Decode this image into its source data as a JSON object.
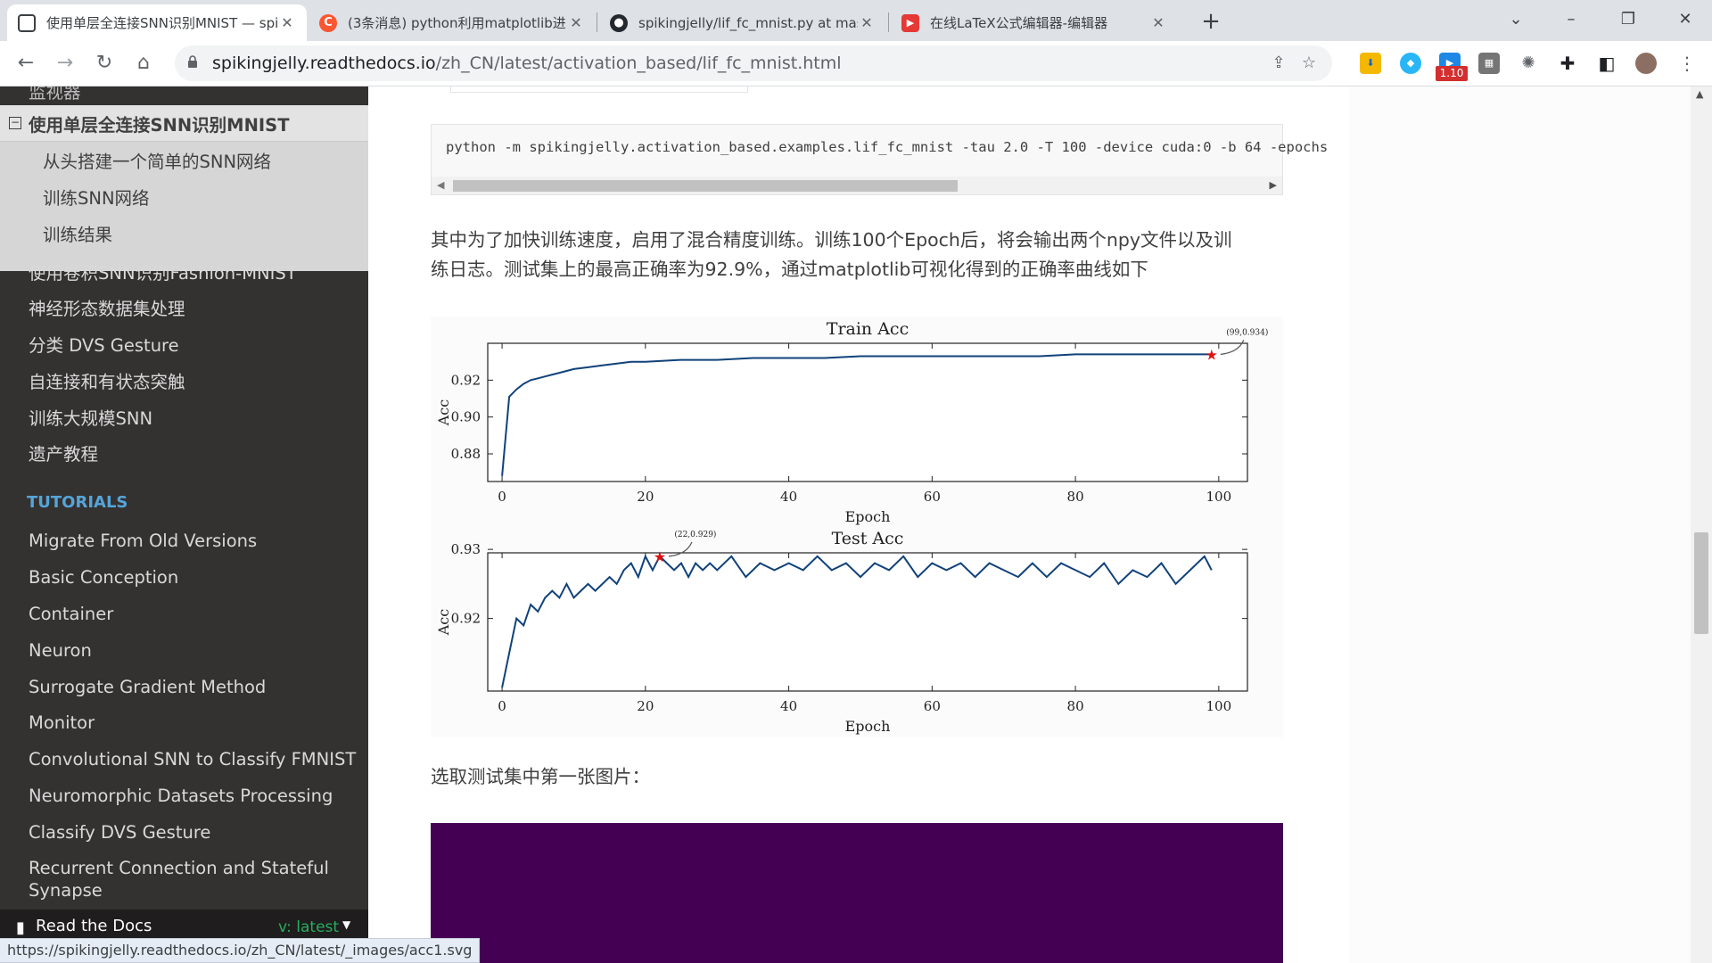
{
  "tabs": [
    {
      "title": "使用单层全连接SNN识别MNIST — spikingjelly",
      "icon": "doc-icon",
      "active": true
    },
    {
      "title": "(3条消息) python利用matplotlib进",
      "icon": "csdn-icon",
      "active": false
    },
    {
      "title": "spikingjelly/lif_fc_mnist.py at mas",
      "icon": "github-icon",
      "active": false
    },
    {
      "title": "在线LaTeX公式编辑器-编辑器",
      "icon": "latex-icon",
      "active": false
    }
  ],
  "address": {
    "host": "spikingjelly.readthedocs.io",
    "path": "/zh_CN/latest/activation_based/lif_fc_mnist.html"
  },
  "extensions": {
    "badge": "1.10"
  },
  "sidebar": {
    "partial_top": "监视器",
    "current": "使用单层全连接SNN识别MNIST",
    "sub_items": [
      "从头搭建一个简单的SNN网络",
      "训练SNN网络",
      "训练结果"
    ],
    "items": [
      "使用卷积SNN识别Fashion-MNIST",
      "神经形态数据集处理",
      "分类 DVS Gesture",
      "自连接和有状态突触",
      "训练大规模SNN",
      "遗产教程"
    ],
    "caption": "TUTORIALS",
    "tutorials": [
      "Migrate From Old Versions",
      "Basic Conception",
      "Container",
      "Neuron",
      "Surrogate Gradient Method",
      "Monitor",
      "Convolutional SNN to Classify FMNIST",
      "Neuromorphic Datasets Processing",
      "Classify DVS Gesture",
      "Recurrent Connection and Stateful",
      "Synapse"
    ],
    "rtd_label": "Read the Docs",
    "rtd_version": "v: latest"
  },
  "content": {
    "code": "python -m spikingjelly.activation_based.examples.lif_fc_mnist -tau 2.0 -T 100 -device cuda:0 -b 64 -epochs",
    "para1_line1": "其中为了加快训练速度，启用了混合精度训练。训练100个Epoch后，将会输出两个npy文件以及训",
    "para1_line2": "练日志。测试集上的最高正确率为92.9%，通过matplotlib可视化得到的正确率曲线如下",
    "para2": "选取测试集中第一张图片："
  },
  "status_url": "https://spikingjelly.readthedocs.io/zh_CN/latest/_images/acc1.svg",
  "chart_data": [
    {
      "type": "line",
      "title": "Train Acc",
      "xlabel": "Epoch",
      "ylabel": "Acc",
      "xlim": [
        -2,
        104
      ],
      "ylim": [
        0.865,
        0.94
      ],
      "xticks": [
        0,
        20,
        40,
        60,
        80,
        100
      ],
      "yticks": [
        0.88,
        0.9,
        0.92
      ],
      "annotation": {
        "text": "(99,0.934)",
        "x": 99,
        "y": 0.934
      },
      "x": [
        0,
        1,
        2,
        3,
        4,
        5,
        6,
        7,
        8,
        9,
        10,
        12,
        14,
        16,
        18,
        20,
        25,
        30,
        35,
        40,
        45,
        50,
        55,
        60,
        65,
        70,
        75,
        80,
        85,
        90,
        95,
        99
      ],
      "values": [
        0.868,
        0.911,
        0.915,
        0.918,
        0.92,
        0.921,
        0.922,
        0.923,
        0.924,
        0.925,
        0.926,
        0.927,
        0.928,
        0.929,
        0.93,
        0.93,
        0.931,
        0.931,
        0.932,
        0.932,
        0.932,
        0.933,
        0.933,
        0.933,
        0.933,
        0.933,
        0.933,
        0.934,
        0.934,
        0.934,
        0.934,
        0.934
      ]
    },
    {
      "type": "line",
      "title": "Test Acc",
      "xlabel": "Epoch",
      "ylabel": "Acc",
      "xlim": [
        -2,
        104
      ],
      "ylim": [
        0.9095,
        0.9295
      ],
      "xticks": [
        0,
        20,
        40,
        60,
        80,
        100
      ],
      "yticks": [
        0.92,
        0.93
      ],
      "annotation": {
        "text": "(22,0.929)",
        "x": 22,
        "y": 0.929
      },
      "x": [
        0,
        1,
        2,
        3,
        4,
        5,
        6,
        7,
        8,
        9,
        10,
        11,
        12,
        13,
        14,
        15,
        16,
        17,
        18,
        19,
        20,
        21,
        22,
        23,
        24,
        25,
        26,
        27,
        28,
        29,
        30,
        32,
        34,
        36,
        38,
        40,
        42,
        44,
        46,
        48,
        50,
        52,
        54,
        56,
        58,
        60,
        62,
        64,
        66,
        68,
        70,
        72,
        74,
        76,
        78,
        80,
        82,
        84,
        86,
        88,
        90,
        92,
        94,
        96,
        98,
        99
      ],
      "values": [
        0.91,
        0.915,
        0.92,
        0.919,
        0.922,
        0.921,
        0.923,
        0.924,
        0.923,
        0.925,
        0.923,
        0.924,
        0.925,
        0.924,
        0.925,
        0.926,
        0.925,
        0.927,
        0.928,
        0.926,
        0.929,
        0.927,
        0.929,
        0.928,
        0.927,
        0.928,
        0.926,
        0.928,
        0.927,
        0.928,
        0.927,
        0.929,
        0.926,
        0.928,
        0.927,
        0.928,
        0.927,
        0.929,
        0.927,
        0.928,
        0.926,
        0.928,
        0.927,
        0.929,
        0.926,
        0.928,
        0.927,
        0.928,
        0.926,
        0.928,
        0.927,
        0.926,
        0.928,
        0.926,
        0.928,
        0.927,
        0.926,
        0.928,
        0.925,
        0.927,
        0.926,
        0.928,
        0.925,
        0.927,
        0.929,
        0.927
      ]
    }
  ]
}
